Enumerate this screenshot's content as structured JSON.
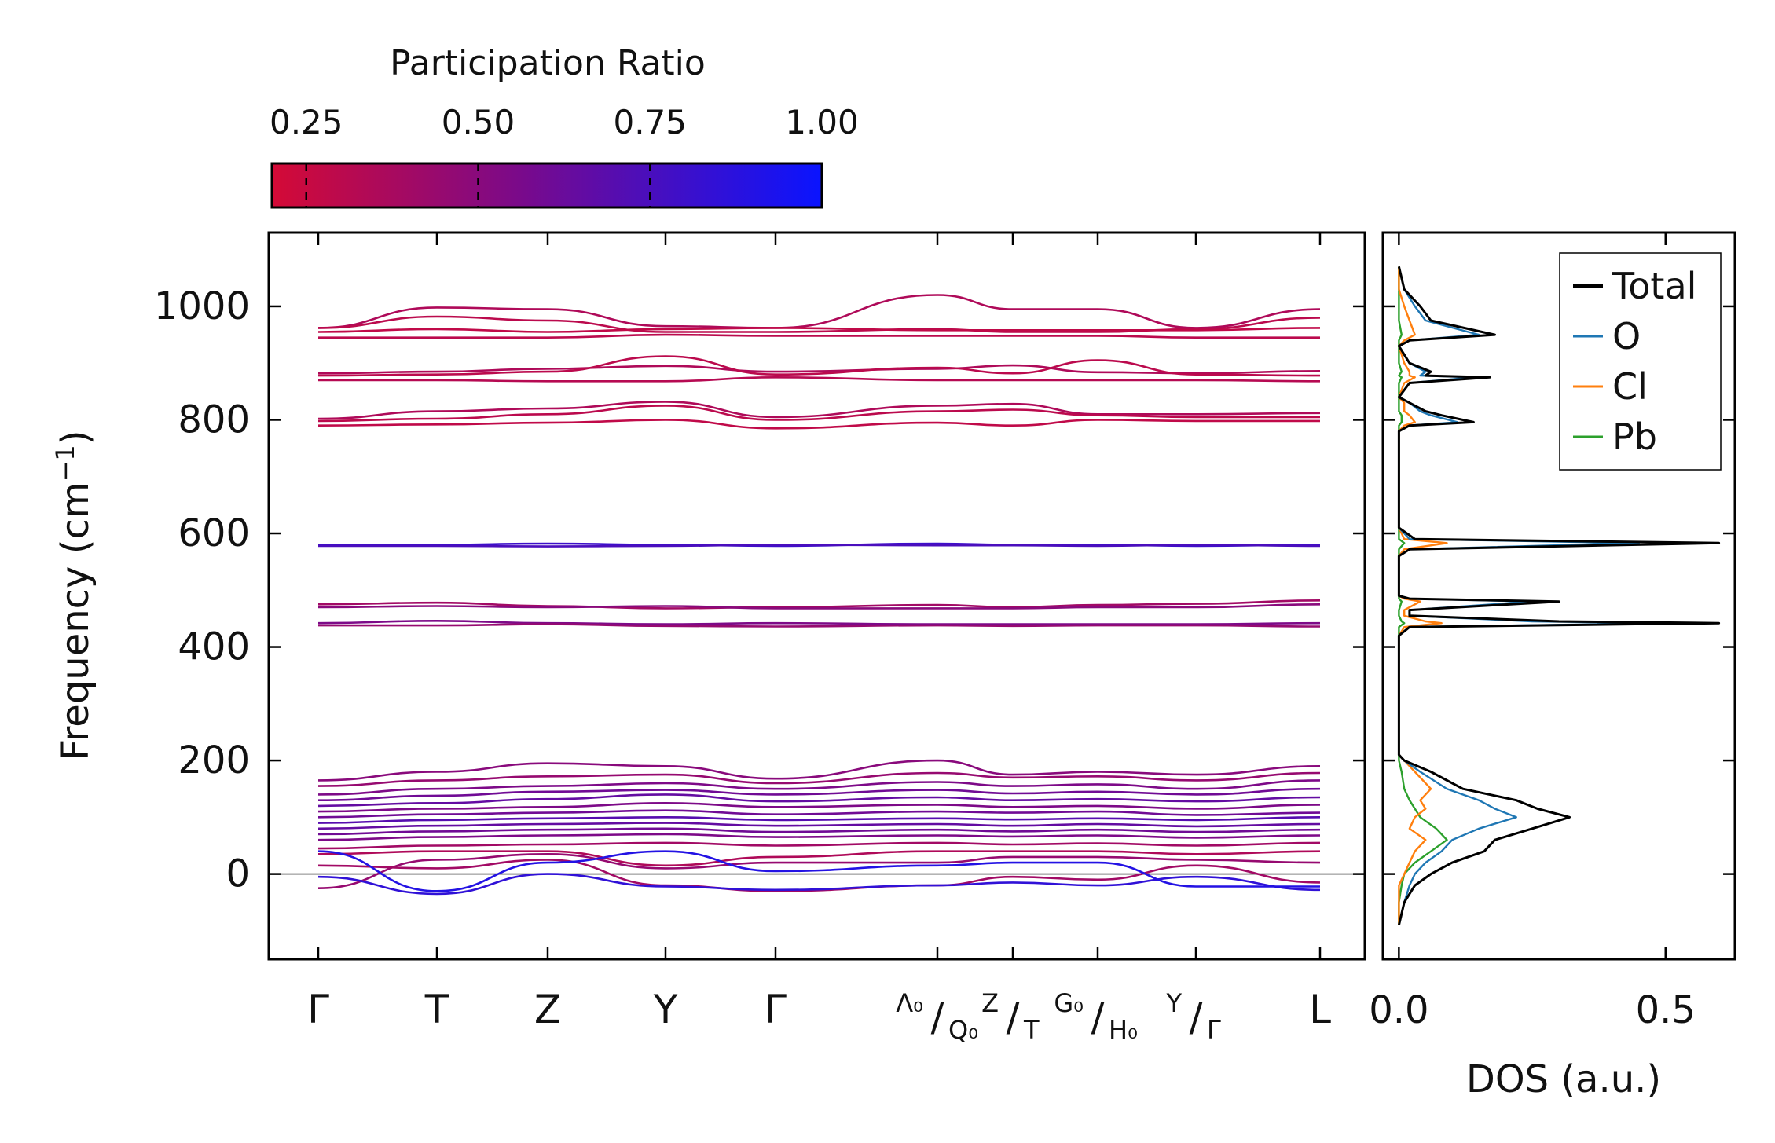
{
  "colorbar": {
    "title": "Participation Ratio",
    "range": [
      0.2,
      1.0
    ],
    "ticks": [
      0.25,
      0.5,
      0.75,
      1.0
    ],
    "tick_labels": [
      "0.25",
      "0.50",
      "0.75",
      "1.00"
    ],
    "color_low": "#d40a36",
    "color_mid": "#7a0a8a",
    "color_high": "#0a14ff"
  },
  "chart_data": [
    {
      "type": "line",
      "name": "phonon-band-structure",
      "ylabel": "Frequency (cm",
      "ylabel_sup": "−1",
      "ylabel_close": ")",
      "ylim": [
        -150,
        1130
      ],
      "yticks": [
        0,
        200,
        400,
        600,
        800,
        1000
      ],
      "ytick_labels": [
        "0",
        "200",
        "400",
        "600",
        "800",
        "1000"
      ],
      "path_breaks_at_segment": [
        6,
        8
      ],
      "kpoints": [
        {
          "pos": 0,
          "label": "Γ"
        },
        {
          "pos": 1,
          "label": "T"
        },
        {
          "pos": 2,
          "label": "Z"
        },
        {
          "pos": 3,
          "label": "Y"
        },
        {
          "pos": 4,
          "label": "Γ"
        },
        {
          "pos": 5,
          "label": ""
        },
        {
          "pos": 6,
          "label": ""
        },
        {
          "pos": 7,
          "label": ""
        },
        {
          "pos": 8,
          "label": ""
        },
        {
          "pos": 9,
          "label": "L"
        }
      ],
      "composite_labels": [
        {
          "id": "lambda-q",
          "top": "Λ₀",
          "bottom": "Q₀"
        },
        {
          "id": "z-t",
          "top": "Z",
          "bottom": "T"
        },
        {
          "id": "g-h",
          "top": "G₀",
          "bottom": "H₀"
        },
        {
          "id": "y-gamma",
          "top": "Y",
          "bottom": "Γ"
        }
      ],
      "zero_line_color": "#888888",
      "bands": [
        {
          "f": [
            962,
            998,
            995,
            965,
            962,
            1020,
            995,
            995,
            962,
            995
          ],
          "pr": 0.35
        },
        {
          "f": [
            962,
            982,
            975,
            955,
            955,
            960,
            955,
            955,
            960,
            980
          ],
          "pr": 0.3
        },
        {
          "f": [
            955,
            960,
            955,
            960,
            962,
            958,
            958,
            958,
            958,
            962
          ],
          "pr": 0.28
        },
        {
          "f": [
            945,
            945,
            945,
            950,
            948,
            948,
            948,
            948,
            945,
            945
          ],
          "pr": 0.3
        },
        {
          "f": [
            882,
            885,
            890,
            895,
            885,
            890,
            896,
            884,
            882,
            886
          ],
          "pr": 0.35
        },
        {
          "f": [
            878,
            880,
            885,
            912,
            880,
            892,
            882,
            905,
            880,
            878
          ],
          "pr": 0.3
        },
        {
          "f": [
            870,
            870,
            868,
            868,
            875,
            870,
            870,
            870,
            870,
            868
          ],
          "pr": 0.32
        },
        {
          "f": [
            802,
            815,
            820,
            832,
            805,
            825,
            828,
            810,
            810,
            812
          ],
          "pr": 0.35
        },
        {
          "f": [
            798,
            802,
            810,
            825,
            800,
            815,
            818,
            808,
            805,
            805
          ],
          "pr": 0.3
        },
        {
          "f": [
            790,
            792,
            795,
            800,
            785,
            795,
            790,
            800,
            798,
            798
          ],
          "pr": 0.28
        },
        {
          "f": [
            580,
            580,
            582,
            580,
            578,
            582,
            580,
            580,
            578,
            580
          ],
          "pr": 0.8
        },
        {
          "f": [
            578,
            578,
            577,
            578,
            580,
            579,
            579,
            578,
            580,
            578
          ],
          "pr": 0.75
        },
        {
          "f": [
            475,
            478,
            472,
            468,
            470,
            474,
            470,
            474,
            476,
            482
          ],
          "pr": 0.4
        },
        {
          "f": [
            470,
            472,
            470,
            472,
            468,
            468,
            468,
            470,
            470,
            475
          ],
          "pr": 0.5
        },
        {
          "f": [
            442,
            446,
            442,
            440,
            442,
            440,
            440,
            440,
            440,
            442
          ],
          "pr": 0.55
        },
        {
          "f": [
            438,
            438,
            440,
            437,
            436,
            438,
            437,
            438,
            438,
            436
          ],
          "pr": 0.45
        },
        {
          "f": [
            165,
            180,
            195,
            190,
            168,
            200,
            175,
            180,
            175,
            190
          ],
          "pr": 0.5
        },
        {
          "f": [
            155,
            165,
            172,
            175,
            160,
            178,
            170,
            172,
            165,
            178
          ],
          "pr": 0.45
        },
        {
          "f": [
            140,
            150,
            155,
            160,
            150,
            162,
            155,
            158,
            150,
            165
          ],
          "pr": 0.55
        },
        {
          "f": [
            130,
            138,
            145,
            148,
            140,
            148,
            142,
            145,
            140,
            150
          ],
          "pr": 0.6
        },
        {
          "f": [
            120,
            125,
            132,
            140,
            128,
            135,
            130,
            132,
            128,
            135
          ],
          "pr": 0.65
        },
        {
          "f": [
            110,
            115,
            118,
            125,
            118,
            122,
            118,
            120,
            115,
            122
          ],
          "pr": 0.55
        },
        {
          "f": [
            100,
            105,
            108,
            112,
            105,
            110,
            108,
            110,
            104,
            108
          ],
          "pr": 0.6
        },
        {
          "f": [
            90,
            95,
            98,
            100,
            95,
            98,
            96,
            98,
            95,
            100
          ],
          "pr": 0.7
        },
        {
          "f": [
            80,
            85,
            88,
            90,
            85,
            88,
            85,
            88,
            84,
            88
          ],
          "pr": 0.65
        },
        {
          "f": [
            70,
            75,
            78,
            80,
            74,
            78,
            75,
            78,
            74,
            78
          ],
          "pr": 0.6
        },
        {
          "f": [
            60,
            65,
            68,
            70,
            65,
            68,
            66,
            68,
            64,
            68
          ],
          "pr": 0.55
        },
        {
          "f": [
            45,
            50,
            52,
            55,
            50,
            55,
            52,
            54,
            50,
            55
          ],
          "pr": 0.4
        },
        {
          "f": [
            35,
            40,
            40,
            15,
            30,
            40,
            40,
            40,
            35,
            40
          ],
          "pr": 0.35
        },
        {
          "f": [
            -25,
            25,
            35,
            10,
            20,
            20,
            30,
            30,
            25,
            20
          ],
          "pr": 0.45
        },
        {
          "f": [
            15,
            10,
            25,
            -20,
            -30,
            -20,
            -5,
            -10,
            15,
            -15
          ],
          "pr": 0.4
        },
        {
          "f": [
            -5,
            -35,
            0,
            -22,
            -28,
            -20,
            -15,
            -20,
            -5,
            -28
          ],
          "pr": 0.85
        },
        {
          "f": [
            40,
            -30,
            20,
            40,
            5,
            15,
            20,
            20,
            -22,
            -22
          ],
          "pr": 0.9
        }
      ]
    },
    {
      "type": "line",
      "name": "density-of-states",
      "xlabel": "DOS (a.u.)",
      "xlim": [
        -0.03,
        0.63
      ],
      "xticks": [
        0.0,
        0.5
      ],
      "xtick_labels": [
        "0.0",
        "0.5"
      ],
      "ylim": [
        -150,
        1130
      ],
      "legend_position": "top-right",
      "series": [
        {
          "name": "Total",
          "color": "#000000",
          "x": [
            0,
            0.01,
            0.04,
            0.06,
            0.18,
            0.02,
            0,
            0.02,
            0.06,
            0.05,
            0.17,
            0.02,
            0,
            0.02,
            0.05,
            0.08,
            0.14,
            0.02,
            0,
            0,
            0.03,
            0.6,
            0.02,
            0,
            0,
            0.02,
            0.3,
            0.02,
            0.02,
            0.3,
            0.6,
            0.02,
            0,
            0,
            0.01,
            0.06,
            0.12,
            0.22,
            0.26,
            0.32,
            0.25,
            0.18,
            0.16,
            0.1,
            0.06,
            0.03,
            0.01,
            0
          ],
          "y": [
            1070,
            1030,
            1000,
            975,
            950,
            940,
            930,
            900,
            885,
            878,
            875,
            865,
            840,
            830,
            815,
            808,
            796,
            790,
            780,
            610,
            590,
            583,
            572,
            560,
            490,
            485,
            480,
            465,
            455,
            445,
            442,
            435,
            420,
            210,
            200,
            180,
            150,
            130,
            115,
            100,
            80,
            60,
            40,
            20,
            0,
            -20,
            -50,
            -90
          ]
        },
        {
          "name": "O",
          "color": "#1f77b4",
          "x": [
            0,
            0.01,
            0.03,
            0.05,
            0.15,
            0.02,
            0,
            0.02,
            0.05,
            0.04,
            0.14,
            0.02,
            0,
            0.02,
            0.04,
            0.06,
            0.11,
            0.02,
            0,
            0,
            0.02,
            0.45,
            0.02,
            0,
            0,
            0.02,
            0.25,
            0.02,
            0.02,
            0.25,
            0.5,
            0.02,
            0,
            0,
            0.01,
            0.04,
            0.09,
            0.15,
            0.18,
            0.22,
            0.15,
            0.1,
            0.08,
            0.05,
            0.03,
            0.02,
            0.01,
            0
          ],
          "y": [
            1070,
            1030,
            1000,
            975,
            950,
            940,
            930,
            900,
            885,
            878,
            875,
            865,
            840,
            830,
            815,
            808,
            796,
            790,
            780,
            610,
            590,
            583,
            572,
            560,
            490,
            485,
            480,
            465,
            455,
            445,
            442,
            435,
            420,
            210,
            200,
            180,
            150,
            130,
            115,
            100,
            80,
            60,
            40,
            20,
            0,
            -20,
            -50,
            -90
          ]
        },
        {
          "name": "Cl",
          "color": "#ff7f0e",
          "x": [
            0,
            0,
            0.01,
            0.02,
            0.03,
            0.01,
            0,
            0.01,
            0.02,
            0.02,
            0.03,
            0.01,
            0,
            0.01,
            0.01,
            0.02,
            0.03,
            0.01,
            0,
            0,
            0.01,
            0.09,
            0.01,
            0,
            0,
            0.01,
            0.04,
            0.01,
            0.01,
            0.05,
            0.08,
            0.01,
            0,
            0,
            0.01,
            0.03,
            0.06,
            0.04,
            0.05,
            0.03,
            0.02,
            0.05,
            0.03,
            0.02,
            0.01,
            0,
            0,
            0
          ],
          "y": [
            1070,
            1030,
            1000,
            975,
            950,
            940,
            930,
            900,
            885,
            878,
            875,
            865,
            840,
            830,
            815,
            808,
            796,
            790,
            780,
            610,
            590,
            583,
            572,
            560,
            490,
            485,
            480,
            465,
            455,
            445,
            442,
            435,
            420,
            210,
            200,
            180,
            150,
            130,
            115,
            100,
            80,
            60,
            40,
            20,
            0,
            -20,
            -50,
            -90
          ]
        },
        {
          "name": "Pb",
          "color": "#2ca02c",
          "x": [
            0,
            0,
            0,
            0,
            0.005,
            0,
            0,
            0,
            0.005,
            0,
            0.005,
            0,
            0,
            0,
            0,
            0.005,
            0.005,
            0,
            0,
            0,
            0,
            0.01,
            0,
            0,
            0,
            0,
            0.005,
            0,
            0,
            0.005,
            0.01,
            0,
            0,
            0,
            0,
            0.005,
            0.01,
            0.02,
            0.03,
            0.04,
            0.07,
            0.09,
            0.06,
            0.03,
            0.01,
            0.005,
            0,
            0
          ],
          "y": [
            1070,
            1030,
            1000,
            975,
            950,
            940,
            930,
            900,
            885,
            878,
            875,
            865,
            840,
            830,
            815,
            808,
            796,
            790,
            780,
            610,
            590,
            583,
            572,
            560,
            490,
            485,
            480,
            465,
            455,
            445,
            442,
            435,
            420,
            210,
            200,
            180,
            150,
            130,
            115,
            100,
            80,
            60,
            40,
            20,
            0,
            -20,
            -50,
            -90
          ]
        }
      ]
    }
  ]
}
